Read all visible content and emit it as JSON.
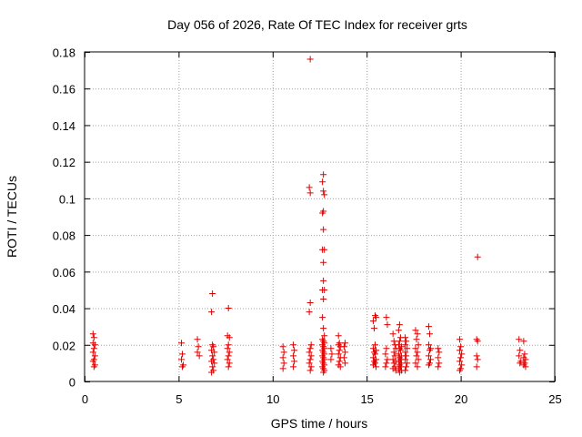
{
  "chart_data": {
    "type": "scatter",
    "title": "Day 056 of 2026, Rate Of TEC Index for receiver grts",
    "xlabel": "GPS time / hours",
    "ylabel": "ROTI / TECUs",
    "xlim": [
      0,
      25
    ],
    "ylim": [
      0,
      0.18
    ],
    "xticks": [
      0,
      5,
      10,
      15,
      20,
      25
    ],
    "xtick_labels": [
      "0",
      "5",
      "10",
      "15",
      "20",
      "25"
    ],
    "yticks": [
      0,
      0.02,
      0.04,
      0.06,
      0.08,
      0.1,
      0.12,
      0.14,
      0.16,
      0.18
    ],
    "ytick_labels": [
      "0",
      "0.02",
      "0.04",
      "0.06",
      "0.08",
      "0.1",
      "0.12",
      "0.14",
      "0.16",
      "0.18"
    ],
    "grid": true,
    "marker": "+",
    "marker_color": "#e00000",
    "series": [
      {
        "points": [
          [
            0.45,
            0.026
          ],
          [
            0.5,
            0.024
          ],
          [
            0.45,
            0.021
          ],
          [
            0.55,
            0.02
          ],
          [
            0.5,
            0.018
          ],
          [
            0.45,
            0.016
          ],
          [
            0.55,
            0.014
          ],
          [
            0.5,
            0.012
          ],
          [
            0.45,
            0.011
          ],
          [
            0.55,
            0.009
          ],
          [
            0.5,
            0.008
          ],
          [
            5.15,
            0.021
          ],
          [
            5.2,
            0.015
          ],
          [
            5.15,
            0.012
          ],
          [
            5.25,
            0.009
          ],
          [
            5.2,
            0.008
          ],
          [
            6.0,
            0.023
          ],
          [
            6.05,
            0.019
          ],
          [
            6.0,
            0.016
          ],
          [
            6.1,
            0.014
          ],
          [
            6.8,
            0.048
          ],
          [
            6.75,
            0.038
          ],
          [
            6.8,
            0.02
          ],
          [
            6.85,
            0.019
          ],
          [
            6.75,
            0.017
          ],
          [
            6.9,
            0.016
          ],
          [
            6.8,
            0.014
          ],
          [
            6.85,
            0.012
          ],
          [
            6.75,
            0.011
          ],
          [
            6.9,
            0.01
          ],
          [
            6.8,
            0.008
          ],
          [
            6.85,
            0.006
          ],
          [
            6.75,
            0.005
          ],
          [
            7.65,
            0.04
          ],
          [
            7.6,
            0.025
          ],
          [
            7.7,
            0.024
          ],
          [
            7.65,
            0.02
          ],
          [
            7.6,
            0.018
          ],
          [
            7.7,
            0.016
          ],
          [
            7.65,
            0.014
          ],
          [
            7.6,
            0.012
          ],
          [
            7.7,
            0.01
          ],
          [
            7.65,
            0.008
          ],
          [
            10.55,
            0.019
          ],
          [
            10.6,
            0.016
          ],
          [
            10.55,
            0.013
          ],
          [
            10.6,
            0.01
          ],
          [
            10.55,
            0.007
          ],
          [
            11.1,
            0.02
          ],
          [
            11.15,
            0.017
          ],
          [
            11.1,
            0.014
          ],
          [
            11.15,
            0.011
          ],
          [
            11.1,
            0.008
          ],
          [
            12.0,
            0.176
          ],
          [
            11.95,
            0.106
          ],
          [
            12.0,
            0.103
          ],
          [
            12.0,
            0.043
          ],
          [
            11.95,
            0.038
          ],
          [
            12.05,
            0.02
          ],
          [
            12.0,
            0.018
          ],
          [
            11.95,
            0.016
          ],
          [
            12.05,
            0.014
          ],
          [
            12.0,
            0.012
          ],
          [
            11.95,
            0.01
          ],
          [
            12.05,
            0.008
          ],
          [
            12.0,
            0.006
          ],
          [
            12.7,
            0.113
          ],
          [
            12.65,
            0.109
          ],
          [
            12.7,
            0.104
          ],
          [
            12.75,
            0.102
          ],
          [
            12.7,
            0.093
          ],
          [
            12.65,
            0.092
          ],
          [
            12.7,
            0.083
          ],
          [
            12.65,
            0.072
          ],
          [
            12.75,
            0.072
          ],
          [
            12.7,
            0.065
          ],
          [
            12.7,
            0.055
          ],
          [
            12.65,
            0.05
          ],
          [
            12.75,
            0.05
          ],
          [
            12.7,
            0.045
          ],
          [
            12.65,
            0.035
          ],
          [
            12.7,
            0.029
          ],
          [
            12.75,
            0.025
          ],
          [
            12.65,
            0.023
          ],
          [
            12.7,
            0.022
          ],
          [
            12.75,
            0.021
          ],
          [
            12.65,
            0.02
          ],
          [
            12.7,
            0.019
          ],
          [
            12.75,
            0.018
          ],
          [
            12.65,
            0.017
          ],
          [
            12.7,
            0.016
          ],
          [
            12.75,
            0.015
          ],
          [
            12.65,
            0.014
          ],
          [
            12.7,
            0.013
          ],
          [
            12.75,
            0.012
          ],
          [
            12.65,
            0.011
          ],
          [
            12.7,
            0.01
          ],
          [
            12.75,
            0.009
          ],
          [
            12.65,
            0.008
          ],
          [
            12.7,
            0.007
          ],
          [
            12.75,
            0.006
          ],
          [
            12.7,
            0.005
          ],
          [
            13.1,
            0.018
          ],
          [
            13.15,
            0.015
          ],
          [
            13.1,
            0.012
          ],
          [
            13.5,
            0.025
          ],
          [
            13.55,
            0.021
          ],
          [
            13.5,
            0.02
          ],
          [
            13.6,
            0.019
          ],
          [
            13.55,
            0.017
          ],
          [
            13.5,
            0.015
          ],
          [
            13.6,
            0.013
          ],
          [
            13.55,
            0.011
          ],
          [
            13.5,
            0.009
          ],
          [
            13.6,
            0.008
          ],
          [
            13.85,
            0.021
          ],
          [
            13.8,
            0.019
          ],
          [
            13.85,
            0.016
          ],
          [
            13.8,
            0.013
          ],
          [
            13.85,
            0.01
          ],
          [
            15.35,
            0.033
          ],
          [
            15.45,
            0.036
          ],
          [
            15.5,
            0.035
          ],
          [
            15.4,
            0.029
          ],
          [
            15.45,
            0.02
          ],
          [
            15.35,
            0.018
          ],
          [
            15.5,
            0.017
          ],
          [
            15.4,
            0.016
          ],
          [
            15.45,
            0.015
          ],
          [
            15.35,
            0.013
          ],
          [
            15.5,
            0.012
          ],
          [
            15.4,
            0.011
          ],
          [
            15.45,
            0.01
          ],
          [
            15.35,
            0.009
          ],
          [
            15.5,
            0.008
          ],
          [
            16.05,
            0.035
          ],
          [
            16.1,
            0.031
          ],
          [
            16.05,
            0.018
          ],
          [
            16.0,
            0.015
          ],
          [
            16.1,
            0.012
          ],
          [
            16.05,
            0.01
          ],
          [
            16.0,
            0.008
          ],
          [
            16.4,
            0.026
          ],
          [
            16.45,
            0.022
          ],
          [
            16.5,
            0.02
          ],
          [
            16.55,
            0.018
          ],
          [
            16.45,
            0.016
          ],
          [
            16.5,
            0.014
          ],
          [
            16.4,
            0.012
          ],
          [
            16.55,
            0.011
          ],
          [
            16.45,
            0.01
          ],
          [
            16.5,
            0.008
          ],
          [
            16.4,
            0.007
          ],
          [
            16.55,
            0.006
          ],
          [
            16.75,
            0.031
          ],
          [
            16.7,
            0.028
          ],
          [
            16.8,
            0.024
          ],
          [
            16.75,
            0.022
          ],
          [
            16.7,
            0.02
          ],
          [
            16.85,
            0.019
          ],
          [
            16.75,
            0.018
          ],
          [
            16.8,
            0.017
          ],
          [
            16.7,
            0.015
          ],
          [
            16.85,
            0.014
          ],
          [
            16.75,
            0.013
          ],
          [
            16.8,
            0.012
          ],
          [
            16.7,
            0.011
          ],
          [
            16.85,
            0.01
          ],
          [
            16.75,
            0.009
          ],
          [
            16.8,
            0.008
          ],
          [
            16.7,
            0.007
          ],
          [
            16.85,
            0.006
          ],
          [
            16.75,
            0.005
          ],
          [
            17.05,
            0.024
          ],
          [
            17.1,
            0.022
          ],
          [
            17.05,
            0.02
          ],
          [
            17.15,
            0.018
          ],
          [
            17.05,
            0.016
          ],
          [
            17.1,
            0.014
          ],
          [
            17.05,
            0.012
          ],
          [
            17.15,
            0.01
          ],
          [
            17.1,
            0.008
          ],
          [
            17.05,
            0.006
          ],
          [
            17.6,
            0.028
          ],
          [
            17.7,
            0.026
          ],
          [
            17.65,
            0.023
          ],
          [
            17.75,
            0.02
          ],
          [
            17.6,
            0.018
          ],
          [
            17.7,
            0.016
          ],
          [
            17.65,
            0.014
          ],
          [
            17.75,
            0.012
          ],
          [
            17.6,
            0.01
          ],
          [
            17.7,
            0.008
          ],
          [
            18.3,
            0.03
          ],
          [
            18.35,
            0.026
          ],
          [
            18.3,
            0.02
          ],
          [
            18.4,
            0.018
          ],
          [
            18.35,
            0.017
          ],
          [
            18.3,
            0.014
          ],
          [
            18.4,
            0.012
          ],
          [
            18.35,
            0.01
          ],
          [
            18.3,
            0.009
          ],
          [
            18.8,
            0.018
          ],
          [
            18.85,
            0.016
          ],
          [
            18.8,
            0.013
          ],
          [
            18.85,
            0.01
          ],
          [
            18.8,
            0.008
          ],
          [
            19.95,
            0.023
          ],
          [
            20.0,
            0.019
          ],
          [
            19.95,
            0.017
          ],
          [
            20.05,
            0.015
          ],
          [
            20.0,
            0.013
          ],
          [
            19.95,
            0.011
          ],
          [
            20.05,
            0.009
          ],
          [
            20.0,
            0.007
          ],
          [
            19.95,
            0.006
          ],
          [
            20.9,
            0.068
          ],
          [
            20.85,
            0.023
          ],
          [
            20.9,
            0.022
          ],
          [
            20.85,
            0.014
          ],
          [
            20.9,
            0.012
          ],
          [
            20.85,
            0.008
          ],
          [
            23.1,
            0.023
          ],
          [
            23.15,
            0.017
          ],
          [
            23.1,
            0.014
          ],
          [
            23.2,
            0.011
          ],
          [
            23.15,
            0.01
          ],
          [
            23.35,
            0.022
          ],
          [
            23.4,
            0.015
          ],
          [
            23.35,
            0.013
          ],
          [
            23.45,
            0.012
          ],
          [
            23.4,
            0.01
          ],
          [
            23.35,
            0.009
          ],
          [
            23.45,
            0.008
          ]
        ]
      }
    ]
  }
}
